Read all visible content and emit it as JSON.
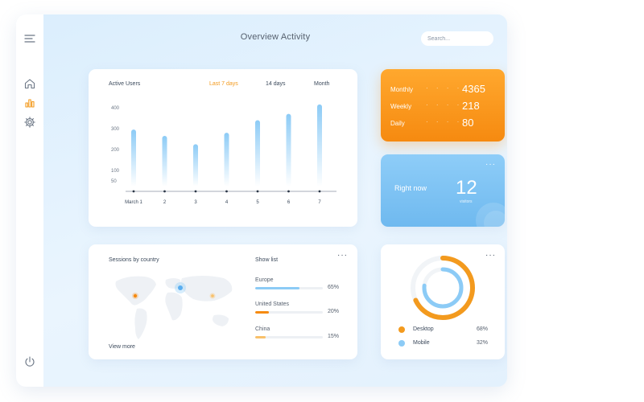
{
  "header": {
    "title": "Overview Activity",
    "search_placeholder": "Search..."
  },
  "sidebar": {
    "icons": [
      "menu-icon",
      "home-icon",
      "bar-chart-icon",
      "gear-icon",
      "power-icon"
    ],
    "accent": "#f39a1e"
  },
  "activity": {
    "title": "Active Users",
    "tabs": [
      {
        "label": "Last 7 days",
        "active": true
      },
      {
        "label": "14 days",
        "active": false
      },
      {
        "label": "Month",
        "active": false
      }
    ]
  },
  "chart_data": {
    "type": "bar",
    "title": "Active Users",
    "categories": [
      "March 1",
      "2",
      "3",
      "4",
      "5",
      "6",
      "7"
    ],
    "values": [
      295,
      265,
      225,
      280,
      340,
      370,
      415
    ],
    "yticks": [
      50,
      100,
      200,
      300,
      400
    ],
    "ylim": [
      0,
      430
    ],
    "grid": false,
    "bar_color": "#8ccbf6"
  },
  "stats": {
    "items": [
      {
        "label": "Monthly",
        "value": "4365"
      },
      {
        "label": "Weekly",
        "value": "218"
      },
      {
        "label": "Daily",
        "value": "80"
      }
    ],
    "dots": "· · · ·",
    "colors": [
      "#ffa82e",
      "#f68a10"
    ]
  },
  "now": {
    "label": "Right now",
    "value": "12",
    "sub": "visitors",
    "colors": [
      "#8ecdf8",
      "#6fb9ef"
    ]
  },
  "sessions": {
    "title": "Sessions by country",
    "show_list": "Show list",
    "view_more": "View more",
    "countries": [
      {
        "name": "Europe",
        "pct": "65%",
        "value": 0.65,
        "color": "#8ccbf6"
      },
      {
        "name": "United States",
        "pct": "20%",
        "value": 0.2,
        "color": "#f68a10"
      },
      {
        "name": "China",
        "pct": "15%",
        "value": 0.15,
        "color": "#f8c06a"
      }
    ]
  },
  "devices": {
    "items": [
      {
        "name": "Desktop",
        "pct": "68%",
        "value": 0.68,
        "color": "#f39a1e"
      },
      {
        "name": "Mobile",
        "pct": "32%",
        "value": 0.32,
        "color": "#8ccbf6"
      }
    ]
  }
}
